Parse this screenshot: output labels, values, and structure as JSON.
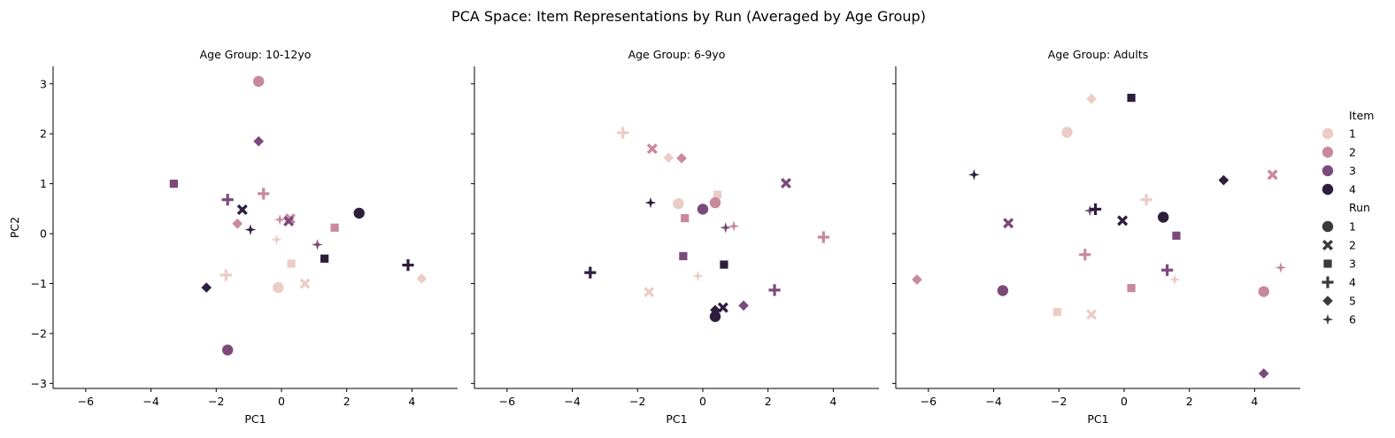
{
  "chart_data": {
    "type": "scatter",
    "title": "PCA Space: Item Representations by Run (Averaged by Age Group)",
    "xlabel": "PC1",
    "ylabel": "PC2",
    "xlim": [
      -7,
      5.4
    ],
    "ylim": [
      -3.1,
      3.35
    ],
    "xticks": [
      -6,
      -4,
      -2,
      0,
      2,
      4
    ],
    "yticks": [
      3,
      2,
      1,
      0,
      -1,
      -2,
      -3
    ],
    "grid": false,
    "legend_position": "right",
    "item_colors": {
      "1": "#ebcdc6",
      "2": "#c8899d",
      "3": "#7c4a7a",
      "4": "#2d1e3d"
    },
    "run_markers": {
      "1": "circle",
      "2": "x",
      "3": "square",
      "4": "plus",
      "5": "diamond",
      "6": "star"
    },
    "legend": {
      "item_title": "Item",
      "item_entries": [
        "1",
        "2",
        "3",
        "4"
      ],
      "run_title": "Run",
      "run_entries": [
        "1",
        "2",
        "3",
        "4",
        "5",
        "6"
      ]
    },
    "panels": [
      {
        "title": "Age Group: 10-12yo",
        "points": [
          {
            "item": 1,
            "run": 1,
            "x": -0.1,
            "y": -1.08
          },
          {
            "item": 1,
            "run": 2,
            "x": 0.72,
            "y": -1.0
          },
          {
            "item": 1,
            "run": 3,
            "x": 0.3,
            "y": -0.6
          },
          {
            "item": 1,
            "run": 4,
            "x": -1.7,
            "y": -0.83
          },
          {
            "item": 1,
            "run": 5,
            "x": 4.3,
            "y": -0.9
          },
          {
            "item": 1,
            "run": 6,
            "x": -0.15,
            "y": -0.12
          },
          {
            "item": 2,
            "run": 1,
            "x": -0.7,
            "y": 3.05
          },
          {
            "item": 2,
            "run": 2,
            "x": 0.27,
            "y": 0.3
          },
          {
            "item": 2,
            "run": 3,
            "x": 1.63,
            "y": 0.12
          },
          {
            "item": 2,
            "run": 4,
            "x": -0.55,
            "y": 0.8
          },
          {
            "item": 2,
            "run": 5,
            "x": -1.35,
            "y": 0.2
          },
          {
            "item": 2,
            "run": 6,
            "x": -0.05,
            "y": 0.28
          },
          {
            "item": 3,
            "run": 1,
            "x": -1.65,
            "y": -2.33
          },
          {
            "item": 3,
            "run": 2,
            "x": 0.22,
            "y": 0.25
          },
          {
            "item": 3,
            "run": 3,
            "x": -3.3,
            "y": 1.0
          },
          {
            "item": 3,
            "run": 4,
            "x": -1.65,
            "y": 0.68
          },
          {
            "item": 3,
            "run": 5,
            "x": -0.7,
            "y": 1.85
          },
          {
            "item": 3,
            "run": 6,
            "x": 1.1,
            "y": -0.22
          },
          {
            "item": 4,
            "run": 1,
            "x": 2.38,
            "y": 0.41
          },
          {
            "item": 4,
            "run": 2,
            "x": -1.2,
            "y": 0.48
          },
          {
            "item": 4,
            "run": 3,
            "x": 1.32,
            "y": -0.5
          },
          {
            "item": 4,
            "run": 4,
            "x": 3.88,
            "y": -0.63
          },
          {
            "item": 4,
            "run": 5,
            "x": -2.3,
            "y": -1.08
          },
          {
            "item": 4,
            "run": 6,
            "x": -0.95,
            "y": 0.08
          }
        ]
      },
      {
        "title": "Age Group: 6-9yo",
        "points": [
          {
            "item": 1,
            "run": 1,
            "x": -0.75,
            "y": 0.6
          },
          {
            "item": 1,
            "run": 2,
            "x": -1.65,
            "y": -1.17
          },
          {
            "item": 1,
            "run": 3,
            "x": 0.45,
            "y": 0.78
          },
          {
            "item": 1,
            "run": 4,
            "x": -2.45,
            "y": 2.02
          },
          {
            "item": 1,
            "run": 5,
            "x": -1.05,
            "y": 1.52
          },
          {
            "item": 1,
            "run": 6,
            "x": -0.15,
            "y": -0.85
          },
          {
            "item": 2,
            "run": 1,
            "x": 0.38,
            "y": 0.62
          },
          {
            "item": 2,
            "run": 2,
            "x": -1.55,
            "y": 1.7
          },
          {
            "item": 2,
            "run": 3,
            "x": -0.55,
            "y": 0.31
          },
          {
            "item": 2,
            "run": 4,
            "x": 3.7,
            "y": -0.07
          },
          {
            "item": 2,
            "run": 5,
            "x": -0.65,
            "y": 1.51
          },
          {
            "item": 2,
            "run": 6,
            "x": 0.95,
            "y": 0.15
          },
          {
            "item": 3,
            "run": 1,
            "x": 0.0,
            "y": 0.49
          },
          {
            "item": 3,
            "run": 2,
            "x": 2.55,
            "y": 1.01
          },
          {
            "item": 3,
            "run": 3,
            "x": -0.6,
            "y": -0.45
          },
          {
            "item": 3,
            "run": 4,
            "x": 2.2,
            "y": -1.13
          },
          {
            "item": 3,
            "run": 5,
            "x": 1.25,
            "y": -1.44
          },
          {
            "item": 3,
            "run": 6,
            "x": 0.7,
            "y": 0.12
          },
          {
            "item": 4,
            "run": 1,
            "x": 0.38,
            "y": -1.66
          },
          {
            "item": 4,
            "run": 2,
            "x": 0.62,
            "y": -1.48
          },
          {
            "item": 4,
            "run": 3,
            "x": 0.65,
            "y": -0.62
          },
          {
            "item": 4,
            "run": 4,
            "x": -3.45,
            "y": -0.78
          },
          {
            "item": 4,
            "run": 5,
            "x": 0.38,
            "y": -1.53
          },
          {
            "item": 4,
            "run": 6,
            "x": -1.6,
            "y": 0.62
          }
        ]
      },
      {
        "title": "Age Group: Adults",
        "points": [
          {
            "item": 1,
            "run": 1,
            "x": -1.75,
            "y": 2.03
          },
          {
            "item": 1,
            "run": 2,
            "x": -1.0,
            "y": -1.62
          },
          {
            "item": 1,
            "run": 3,
            "x": -2.05,
            "y": -1.57
          },
          {
            "item": 1,
            "run": 4,
            "x": 0.68,
            "y": 0.68
          },
          {
            "item": 1,
            "run": 5,
            "x": -1.0,
            "y": 2.7
          },
          {
            "item": 1,
            "run": 6,
            "x": 1.55,
            "y": -0.92
          },
          {
            "item": 2,
            "run": 1,
            "x": 4.28,
            "y": -1.16
          },
          {
            "item": 2,
            "run": 2,
            "x": 4.55,
            "y": 1.18
          },
          {
            "item": 2,
            "run": 3,
            "x": 0.22,
            "y": -1.09
          },
          {
            "item": 2,
            "run": 4,
            "x": -1.2,
            "y": -0.42
          },
          {
            "item": 2,
            "run": 5,
            "x": -6.35,
            "y": -0.92
          },
          {
            "item": 2,
            "run": 6,
            "x": 4.8,
            "y": -0.68
          },
          {
            "item": 3,
            "run": 1,
            "x": -3.72,
            "y": -1.14
          },
          {
            "item": 3,
            "run": 2,
            "x": -3.55,
            "y": 0.21
          },
          {
            "item": 3,
            "run": 3,
            "x": 1.6,
            "y": -0.04
          },
          {
            "item": 3,
            "run": 4,
            "x": 1.32,
            "y": -0.73
          },
          {
            "item": 3,
            "run": 5,
            "x": 4.28,
            "y": -2.8
          },
          {
            "item": 3,
            "run": 6,
            "x": -1.05,
            "y": 0.46
          },
          {
            "item": 4,
            "run": 1,
            "x": 1.2,
            "y": 0.33
          },
          {
            "item": 4,
            "run": 2,
            "x": -0.05,
            "y": 0.26
          },
          {
            "item": 4,
            "run": 3,
            "x": 0.22,
            "y": 2.72
          },
          {
            "item": 4,
            "run": 4,
            "x": -0.88,
            "y": 0.49
          },
          {
            "item": 4,
            "run": 5,
            "x": 3.05,
            "y": 1.07
          },
          {
            "item": 4,
            "run": 6,
            "x": -4.6,
            "y": 1.18
          }
        ]
      }
    ]
  }
}
